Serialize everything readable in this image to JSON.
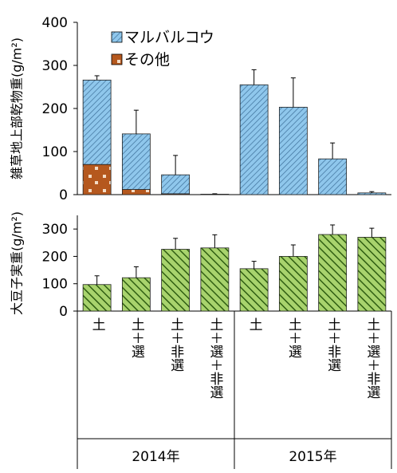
{
  "chart_data": [
    {
      "type": "bar",
      "stacked": true,
      "ylabel": "雑草地上部乾物重(g/m²)",
      "ylim": [
        0,
        400
      ],
      "yticks": [
        0,
        100,
        200,
        300,
        400
      ],
      "categories": [
        "土",
        "土＋選",
        "土＋非選",
        "土＋選＋非選",
        "土",
        "土＋選",
        "土＋非選",
        "土＋選＋非選"
      ],
      "groups": [
        {
          "label": "2014年",
          "categories": [
            "土",
            "土＋選",
            "土＋非選",
            "土＋選＋非選"
          ]
        },
        {
          "label": "2015年",
          "categories": [
            "土",
            "土＋選",
            "土＋非選",
            "土＋選＋非選"
          ]
        }
      ],
      "series": [
        {
          "name": "その他",
          "values": [
            70,
            12,
            2,
            1,
            0,
            0,
            0,
            0
          ],
          "color": "#b5581e"
        },
        {
          "name": "マルバルコウ",
          "values": [
            196,
            129,
            44,
            0,
            255,
            203,
            83,
            4
          ],
          "color": "#8fc7ec"
        }
      ],
      "totals": [
        266,
        141,
        46,
        1,
        255,
        203,
        83,
        4
      ],
      "error": [
        10,
        55,
        45,
        1,
        35,
        68,
        37,
        3
      ],
      "legend": {
        "position": "top-right-inside",
        "entries": [
          "マルバルコウ",
          "その他"
        ]
      }
    },
    {
      "type": "bar",
      "ylabel": "大豆子実重(g/m²)",
      "ylim": [
        0,
        350
      ],
      "yticks": [
        0,
        100,
        200,
        300
      ],
      "categories": [
        "土",
        "土＋選",
        "土＋非選",
        "土＋選＋非選",
        "土",
        "土＋選",
        "土＋非選",
        "土＋選＋非選"
      ],
      "values": [
        97,
        122,
        226,
        231,
        155,
        200,
        280,
        270
      ],
      "error": [
        32,
        40,
        40,
        48,
        27,
        42,
        35,
        33
      ],
      "color": "#92c45a"
    }
  ]
}
